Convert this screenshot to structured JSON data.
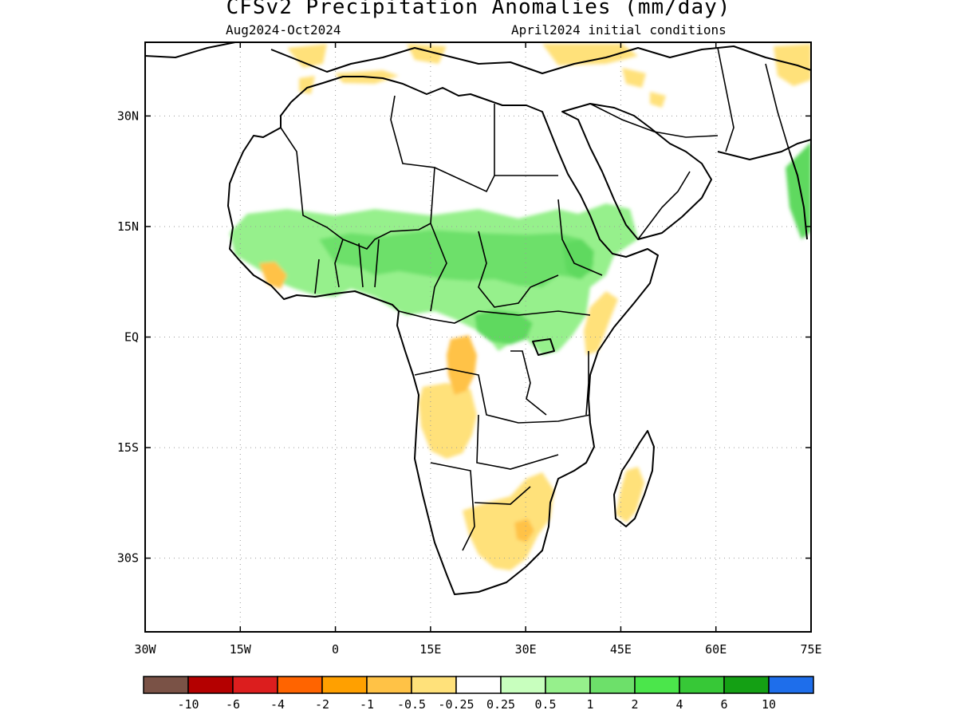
{
  "title": "CFSv2 Precipitation Anomalies (mm/day)",
  "subtitle_left": "Aug2024-Oct2024",
  "subtitle_right": "April2024 initial conditions",
  "map": {
    "region": "Africa and Middle East",
    "lon_range": [
      -30,
      75
    ],
    "lat_range": [
      -40,
      40
    ],
    "gridlines": "dotted",
    "lon_ticks": [
      {
        "value": -30,
        "label": "30W"
      },
      {
        "value": -15,
        "label": "15W"
      },
      {
        "value": 0,
        "label": "0"
      },
      {
        "value": 15,
        "label": "15E"
      },
      {
        "value": 30,
        "label": "30E"
      },
      {
        "value": 45,
        "label": "45E"
      },
      {
        "value": 60,
        "label": "60E"
      },
      {
        "value": 75,
        "label": "75E"
      }
    ],
    "lat_ticks": [
      {
        "value": 30,
        "label": "30N"
      },
      {
        "value": 15,
        "label": "15N"
      },
      {
        "value": 0,
        "label": "EQ"
      },
      {
        "value": -15,
        "label": "15S"
      },
      {
        "value": -30,
        "label": "30S"
      }
    ],
    "anomaly_regions": [
      {
        "name": "Sahel wet band",
        "level": "0.5 to 1",
        "color": "#96f08c"
      },
      {
        "name": "Central Sahel core",
        "level": "1 to 2",
        "color": "#6de06a"
      },
      {
        "name": "Congo basin wet core",
        "level": "1 to 2",
        "color": "#5ed95e"
      },
      {
        "name": "Ethiopian highlands",
        "level": "1 to 2",
        "color": "#5ed95e"
      },
      {
        "name": "West India coast",
        "level": "1 to 2",
        "color": "#5ed95e"
      },
      {
        "name": "Angola / Zambia dry",
        "level": "-0.5 to -0.25",
        "color": "#ffe17a"
      },
      {
        "name": "Gabon / Congo dry",
        "level": "-1 to -0.5",
        "color": "#ffc246"
      },
      {
        "name": "Southern Africa dry",
        "level": "-0.5 to -0.25",
        "color": "#ffe17a"
      },
      {
        "name": "Madagascar dry",
        "level": "-0.5 to -0.25",
        "color": "#ffe17a"
      },
      {
        "name": "Somalia / Kenya dry",
        "level": "-0.5 to -0.25",
        "color": "#ffe17a"
      },
      {
        "name": "Gulf of Guinea coast dry",
        "level": "-1 to -0.5",
        "color": "#ffc246"
      },
      {
        "name": "Mediterranean / Turkey dry",
        "level": "-0.5 to -0.25",
        "color": "#ffe17a"
      }
    ]
  },
  "colorbar": {
    "colors": [
      "#7a5246",
      "#b40000",
      "#dc1e1e",
      "#ff6400",
      "#ffa000",
      "#ffc246",
      "#ffe17a",
      "#ffffff",
      "#c8ffbe",
      "#96f08c",
      "#6de06a",
      "#4be64b",
      "#37c837",
      "#14a014",
      "#1e6eeb"
    ],
    "labels": [
      "-10",
      "-6",
      "-4",
      "-2",
      "-1",
      "-0.5",
      "-0.25",
      "0.25",
      "0.5",
      "1",
      "2",
      "4",
      "6",
      "10"
    ]
  }
}
